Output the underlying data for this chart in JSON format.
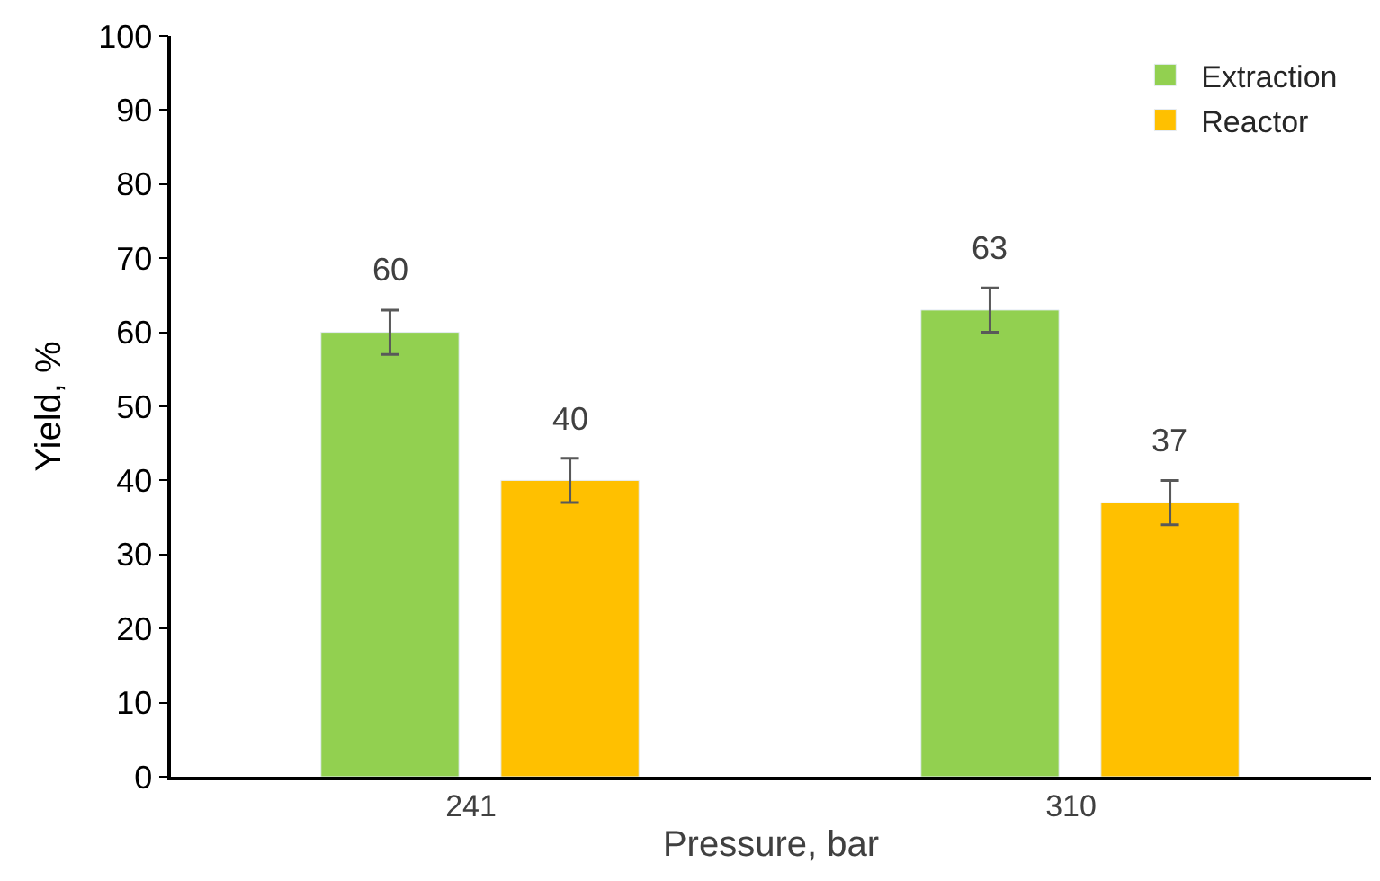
{
  "chart_data": {
    "type": "bar",
    "xlabel": "Pressure, bar",
    "ylabel": "Yield, %",
    "categories": [
      "241",
      "310"
    ],
    "series": [
      {
        "name": "Extraction",
        "color": "#92d050",
        "values": [
          60,
          63
        ],
        "errors": [
          3,
          3
        ]
      },
      {
        "name": "Reactor",
        "color": "#ffc000",
        "values": [
          40,
          37
        ],
        "errors": [
          3,
          3
        ]
      }
    ],
    "ylim": [
      0,
      100
    ],
    "yticks": [
      0,
      10,
      20,
      30,
      40,
      50,
      60,
      70,
      80,
      90,
      100
    ],
    "data_labels": true,
    "legend": "top right"
  }
}
